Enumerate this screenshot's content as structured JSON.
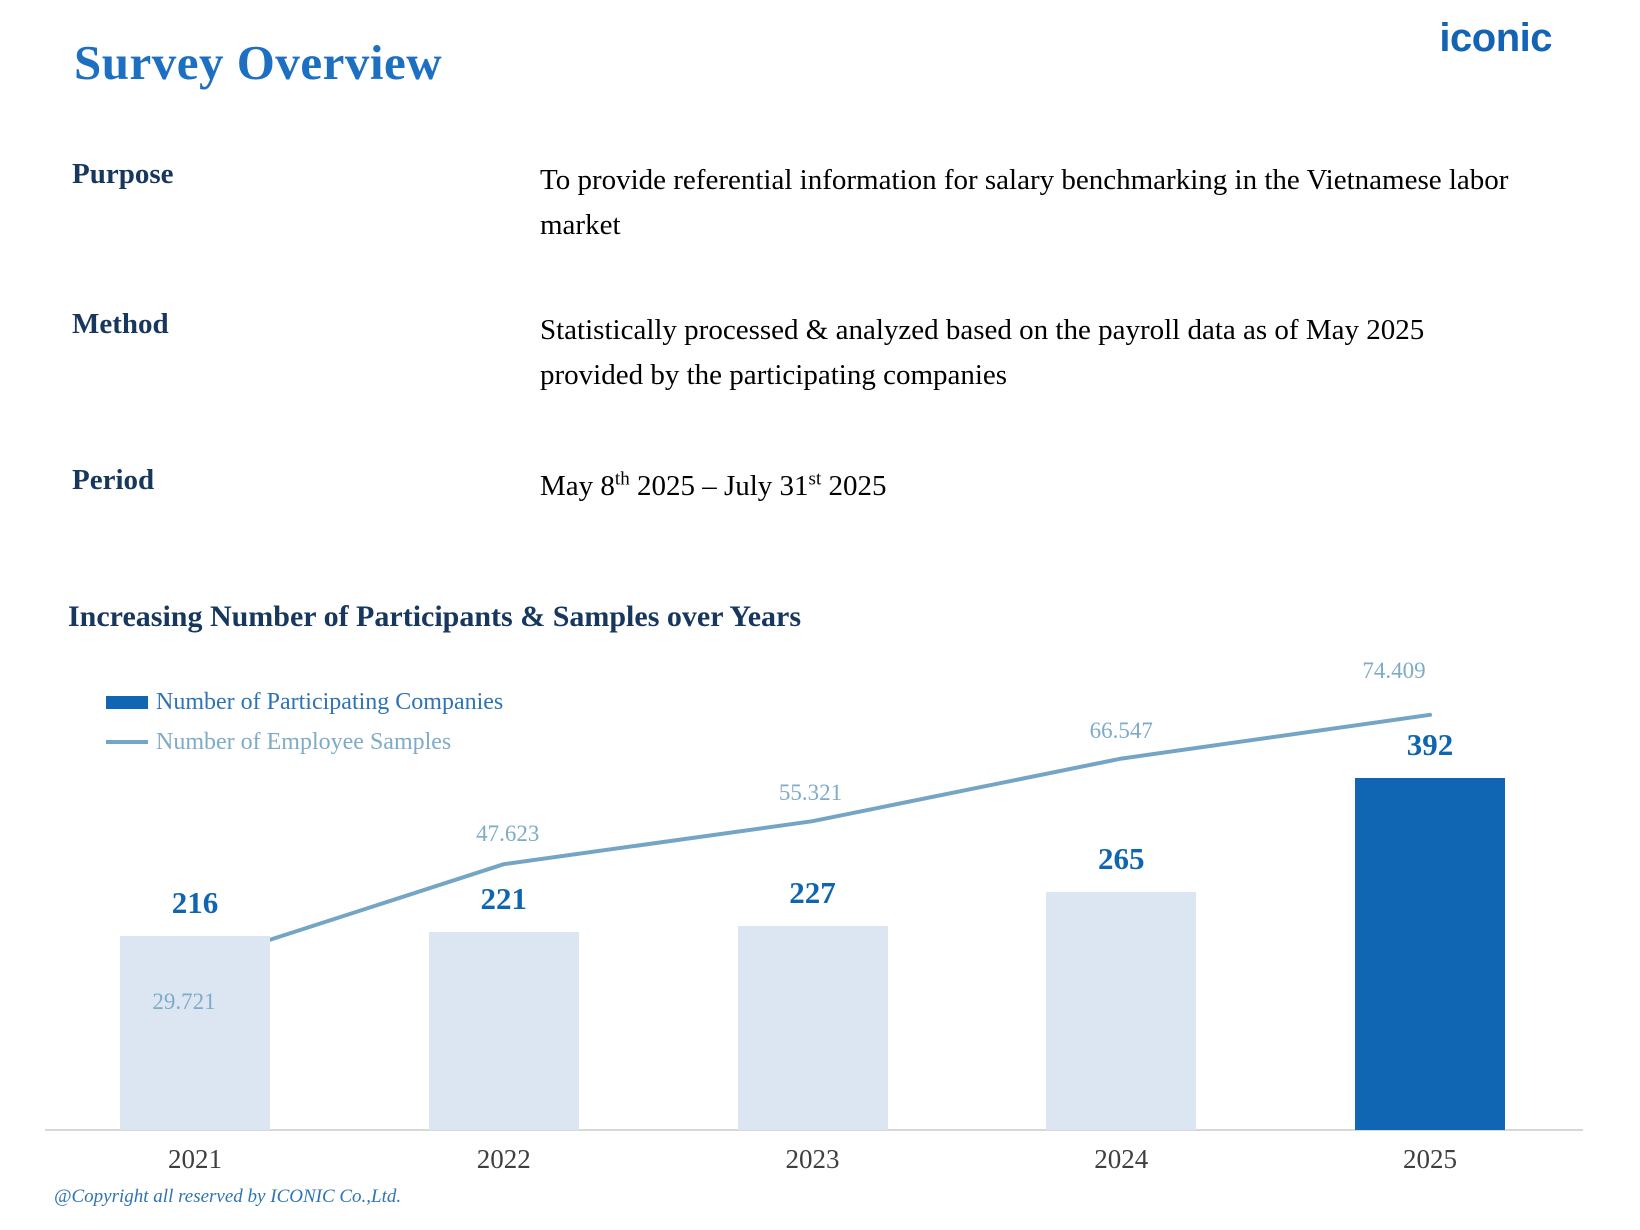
{
  "header": {
    "title": "Survey Overview",
    "logo_text": "iconic"
  },
  "info": {
    "rows": [
      {
        "label": "Purpose",
        "text": "To provide referential information for salary benchmarking in the Vietnamese labor market"
      },
      {
        "label": "Method",
        "text": "Statistically processed & analyzed based on the payroll data as of May 2025 provided by the participating companies"
      },
      {
        "label": "Period"
      }
    ],
    "period_parts": {
      "p1": "May 8",
      "sup1": "th",
      "p2": " 2025 – July 31",
      "sup2": "st",
      "p3": " 2025"
    }
  },
  "footer": {
    "copyright": "@Copyright all reserved by ICONIC Co.,Ltd."
  },
  "colors": {
    "title_blue": "#1D6FC1",
    "logo_blue": "#1464B3",
    "heading_navy": "#17375E",
    "body_text": "#000000",
    "bar_fill_muted": "#DBE6F2",
    "bar_fill_highlight": "#1066B2",
    "bar_value_label": "#1065B1",
    "line_stroke": "#74A5C4",
    "line_value_label": "#7EABC8",
    "legend_companies_text": "#2E74B5",
    "legend_samples_text": "#7EABC8",
    "axis_line": "#D8D8D8",
    "year_label": "#3F3F3F",
    "copyright_blue": "#2E74B5"
  },
  "chart_data": {
    "type": "bar+line",
    "title": "Increasing Number of Participants & Samples over Years",
    "categories": [
      "2021",
      "2022",
      "2023",
      "2024",
      "2025"
    ],
    "series": [
      {
        "name": "Number of Participating Companies",
        "type": "bar",
        "values": [
          216,
          221,
          227,
          265,
          392
        ],
        "data_labels": [
          "216",
          "221",
          "227",
          "265",
          "392"
        ],
        "highlight_index": 4
      },
      {
        "name": "Number of Employee Samples",
        "type": "line",
        "values": [
          29721,
          47623,
          55321,
          66547,
          74409
        ],
        "data_labels": [
          "29.721",
          "47.623",
          "55.321",
          "66.547",
          "74.409"
        ]
      }
    ],
    "legend_position": "top-left",
    "gridlines": false,
    "axes": {
      "x_labels_visible": true,
      "y_axis_visible": false,
      "baseline_visible": true
    }
  }
}
